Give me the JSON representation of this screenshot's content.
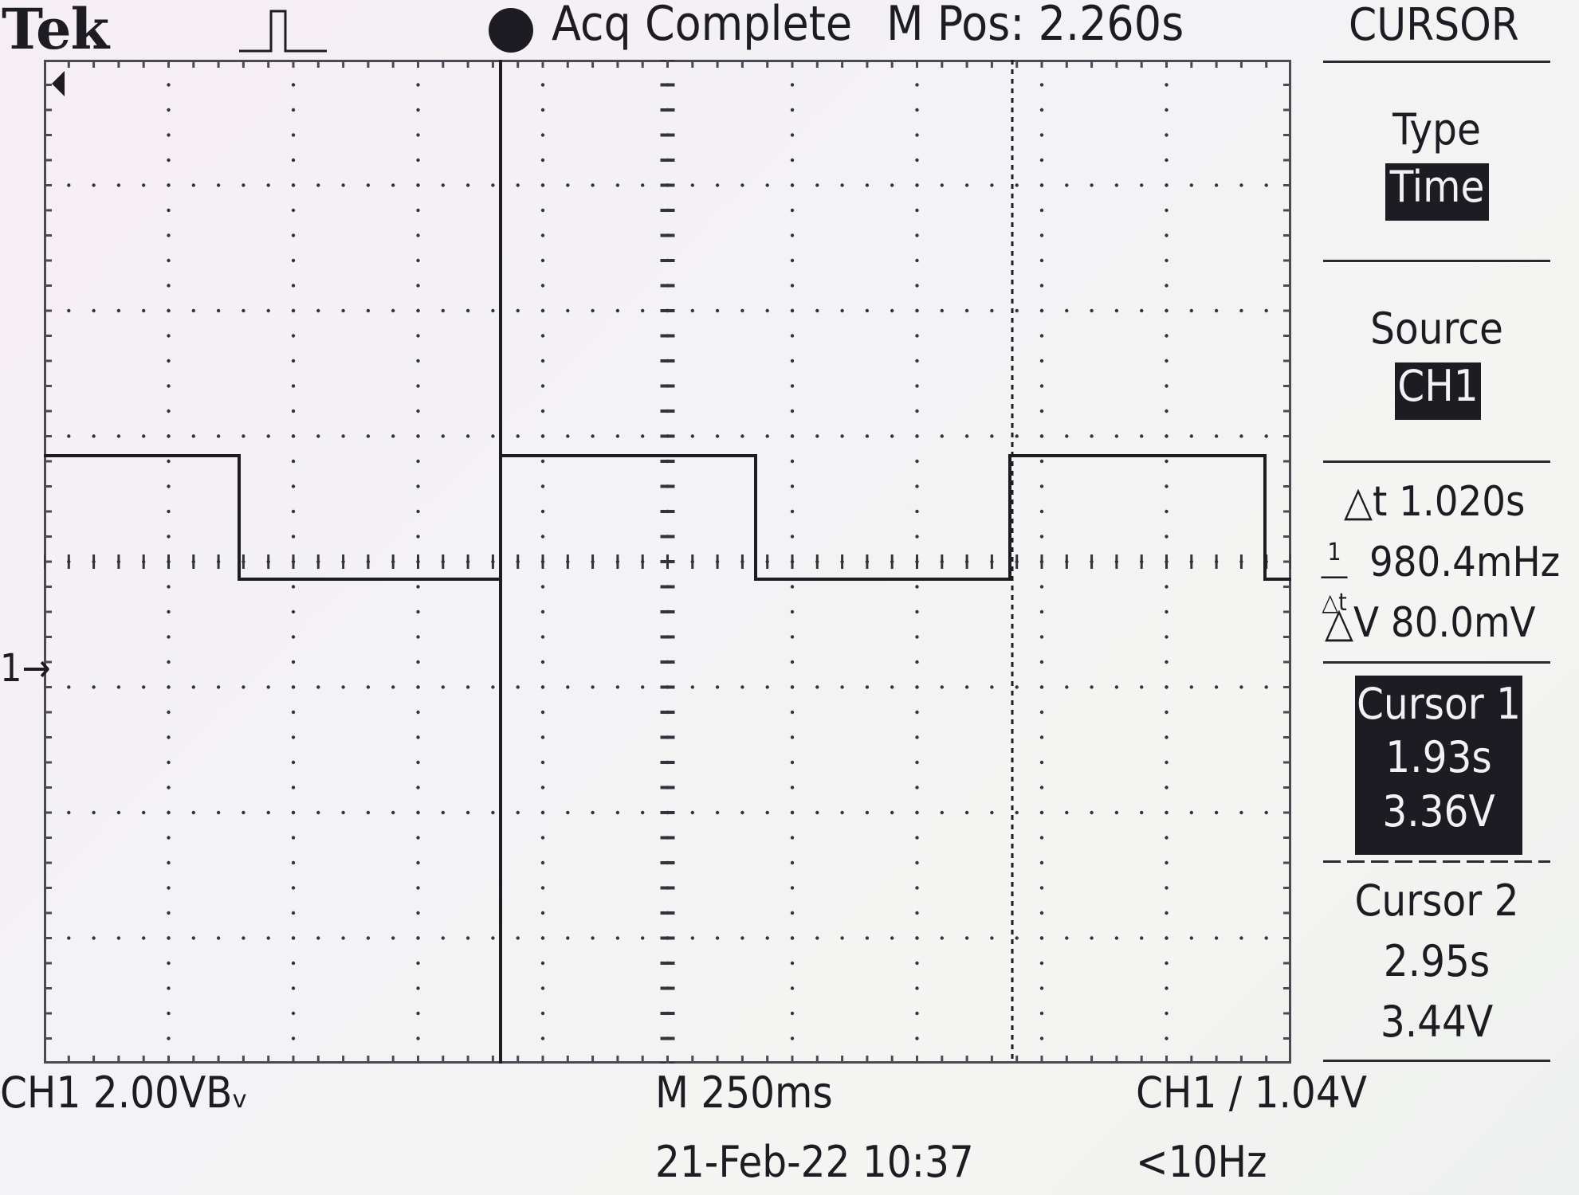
{
  "header": {
    "brand": "Tek",
    "status": "Acq Complete",
    "main_position": "M Pos: 2.260s"
  },
  "menu": {
    "title": "CURSOR",
    "type": {
      "label": "Type",
      "value": "Time"
    },
    "source": {
      "label": "Source",
      "value": "CH1"
    },
    "delta_t": "△t 1.020s",
    "inv_delta_t": "980.4mHz",
    "delta_v": "△V 80.0mV",
    "cursor1": {
      "label": "Cursor 1",
      "time": "1.93s",
      "voltage": "3.36V"
    },
    "cursor2": {
      "label": "Cursor 2",
      "time": "2.95s",
      "voltage": "3.44V"
    }
  },
  "footer": {
    "channel_scale": "CH1  2.00VBᵥ",
    "timebase": "M 250ms",
    "trigger": "CH1 ∕ 1.04V",
    "date_time": "21-Feb-22 10:37",
    "frequency": "<10Hz"
  },
  "markers": {
    "channel1_ground": "1→"
  },
  "waveform": {
    "description_values": {
      "high_level_divisions_above_ground": 1.65,
      "low_level_divisions_above_ground": 0.7,
      "period_divisions": 4.08
    }
  }
}
